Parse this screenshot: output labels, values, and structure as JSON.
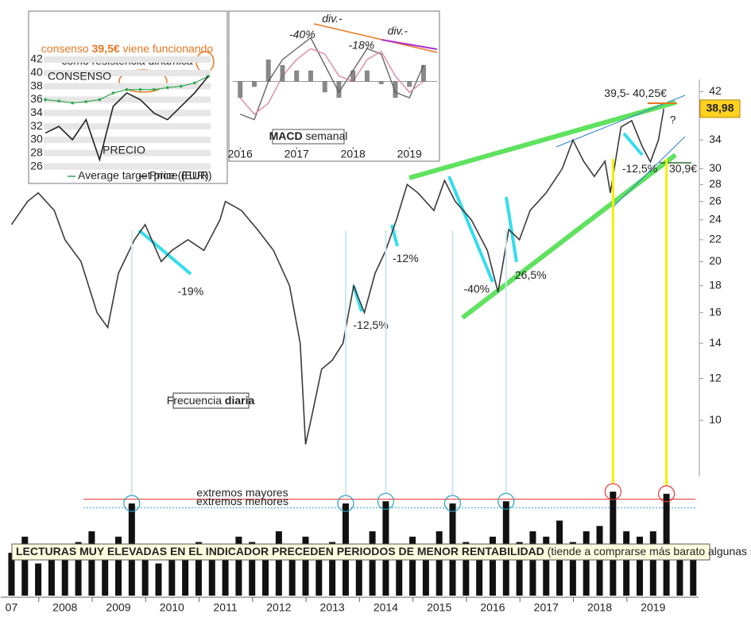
{
  "chart_data": [
    {
      "type": "line",
      "log_scale": true,
      "color": "#3a3a3a",
      "x": [
        2007.0,
        2007.3,
        2007.5,
        2007.8,
        2008.0,
        2008.3,
        2008.6,
        2008.8,
        2009.0,
        2009.3,
        2009.5,
        2009.8,
        2010.0,
        2010.3,
        2010.6,
        2010.9,
        2011.0,
        2011.3,
        2011.6,
        2011.9,
        2012.2,
        2012.4,
        2012.5,
        2012.6,
        2012.8,
        2013.0,
        2013.2,
        2013.4,
        2013.6,
        2013.8,
        2014.0,
        2014.2,
        2014.4,
        2014.6,
        2014.9,
        2015.1,
        2015.3,
        2015.6,
        2015.9,
        2016.1,
        2016.3,
        2016.5,
        2016.7,
        2017.0,
        2017.3,
        2017.5,
        2017.7,
        2017.9,
        2018.1,
        2018.2,
        2018.4,
        2018.6,
        2018.8,
        2018.95,
        2019.1,
        2019.2
      ],
      "values": [
        23.5,
        26,
        27,
        25,
        22,
        20,
        16,
        15,
        19,
        22,
        23.5,
        20,
        21,
        22,
        21,
        24,
        26,
        25,
        23,
        21,
        18,
        14,
        9,
        10,
        12.5,
        13,
        14,
        18,
        16,
        19,
        21,
        24,
        28,
        27,
        25,
        28.5,
        26,
        24,
        21,
        17.5,
        23,
        22,
        25,
        27,
        30,
        34,
        31,
        29,
        31,
        27,
        36,
        37,
        33,
        30.9,
        34,
        38.98
      ],
      "xlim": [
        2006.8,
        2019.85
      ],
      "ylim": [
        8.1,
        44.3
      ],
      "yticks": [
        10,
        12,
        14,
        16,
        18,
        20,
        22,
        24,
        26,
        28,
        30,
        34,
        38,
        42
      ],
      "last_value": 38.98,
      "last_value_label": "38,98",
      "annotations": [
        {
          "text": "-19%",
          "x": 2010.35,
          "y": 17.5,
          "color": "#1a7f8f"
        },
        {
          "text": "-12,5%",
          "x": 2013.72,
          "y": 15.1,
          "color": "#1a7f8f"
        },
        {
          "text": "-12%",
          "x": 2014.37,
          "y": 20.2,
          "color": "#1a7f8f"
        },
        {
          "text": "-40%",
          "x": 2015.7,
          "y": 17.7,
          "color": "#1a7f8f"
        },
        {
          "text": "26,5%",
          "x": 2016.71,
          "y": 18.8,
          "color": "#1a7f8f"
        },
        {
          "text": "-12,5%",
          "x": 2018.75,
          "y": 29.9,
          "color": "#1a7f8f"
        },
        {
          "text": "39,5- 40,25€",
          "x": 2018.67,
          "y": 41.6,
          "color": "#e87722"
        },
        {
          "text": "30,9€",
          "x": 2019.56,
          "y": 29.9,
          "color": "#2e6b2e"
        },
        {
          "text": "?",
          "x": 2019.37,
          "y": 37.0,
          "color": "#1a7f8f"
        }
      ],
      "frequency_label": [
        "Frecuencia",
        "diaria"
      ]
    },
    {
      "type": "bar",
      "color": "#111111",
      "x": [
        2007.0,
        2007.25,
        2007.5,
        2007.75,
        2008.0,
        2008.25,
        2008.5,
        2008.75,
        2009.0,
        2009.25,
        2009.5,
        2009.75,
        2010.0,
        2010.25,
        2010.5,
        2010.75,
        2011.0,
        2011.25,
        2011.5,
        2011.75,
        2012.0,
        2012.25,
        2012.5,
        2012.75,
        2013.0,
        2013.25,
        2013.5,
        2013.75,
        2014.0,
        2014.25,
        2014.5,
        2014.75,
        2015.0,
        2015.25,
        2015.5,
        2015.75,
        2016.0,
        2016.25,
        2016.5,
        2016.75,
        2017.0,
        2017.25,
        2017.5,
        2017.75,
        2018.0,
        2018.25,
        2018.5,
        2018.75,
        2019.0,
        2019.25,
        2019.5,
        2019.75
      ],
      "values": [
        40,
        55,
        30,
        45,
        35,
        50,
        60,
        45,
        55,
        86,
        40,
        30,
        45,
        35,
        50,
        40,
        45,
        55,
        50,
        35,
        60,
        45,
        55,
        40,
        50,
        86,
        45,
        60,
        88,
        45,
        55,
        40,
        60,
        86,
        50,
        45,
        55,
        88,
        50,
        60,
        55,
        70,
        50,
        60,
        65,
        97,
        60,
        55,
        60,
        95,
        45,
        40
      ],
      "xlim": [
        2006.8,
        2019.85
      ],
      "ylim": [
        0,
        100
      ],
      "xticks": [
        {
          "value": 2007,
          "label": "07"
        },
        2008,
        2009,
        2010,
        2011,
        2012,
        2013,
        2014,
        2015,
        2016,
        2017,
        2018,
        2019
      ],
      "thresholds": [
        {
          "label": "extremos mayores",
          "value": 90,
          "color": "#e53935"
        },
        {
          "label": "extremos menores",
          "value": 82,
          "color": "#2a9fc4"
        }
      ],
      "banner": [
        "LECTURAS MUY ELEVADAS EN EL INDICADOR PRECEDEN PERIODOS DE MENOR RENTABILIDAD",
        "(tiende a comprarse más barato algunas semanas/meses después)"
      ]
    },
    {
      "type": "line",
      "categories": [
        null,
        null,
        null,
        null,
        null,
        null,
        null,
        null,
        null,
        null,
        null,
        null,
        null
      ],
      "ylim": [
        25,
        43
      ],
      "yticks": [
        26,
        28,
        30,
        32,
        34,
        36,
        38,
        40,
        42
      ],
      "series": [
        {
          "name": "Average target price (EUR)",
          "label": "CONSENSO",
          "color": "#2fa84f",
          "values": [
            36,
            35.8,
            35.5,
            35.7,
            36,
            37,
            37.5,
            37.5,
            37.5,
            37.8,
            38,
            38.5,
            39.5
          ]
        },
        {
          "name": "Price (EUR)",
          "label": "PRECIO",
          "color": "#222222",
          "values": [
            31,
            32,
            30,
            33,
            27,
            35,
            37,
            36,
            34,
            33,
            35,
            37,
            39.5
          ]
        }
      ],
      "note": [
        "consenso",
        "39,5€",
        "viene funcionando",
        "como resistencia dinámica"
      ]
    },
    {
      "type": "line",
      "x": [
        2016.0,
        2016.25,
        2016.5,
        2016.75,
        2017.0,
        2017.25,
        2017.5,
        2017.75,
        2018.0,
        2018.25,
        2018.5,
        2018.75,
        2019.0,
        2019.25
      ],
      "xlim": [
        2015.87,
        2019.49
      ],
      "xticks": [
        2016,
        2017,
        2018,
        2019
      ],
      "ylim": [
        -1.2,
        1.2
      ],
      "series": [
        {
          "color": "#666666",
          "values": [
            -0.6,
            -0.7,
            0.0,
            0.4,
            0.6,
            0.8,
            0.3,
            -0.2,
            0.2,
            0.6,
            0.5,
            -0.2,
            -0.3,
            0.3
          ]
        },
        {
          "color": "#e08aa0",
          "values": [
            -0.3,
            -0.6,
            -0.4,
            0.1,
            0.4,
            0.6,
            0.5,
            0.1,
            0.0,
            0.4,
            0.55,
            0.1,
            -0.2,
            0.0
          ]
        },
        {
          "color": "#555555",
          "style": "bar",
          "values": [
            -0.3,
            -0.1,
            0.4,
            0.3,
            0.2,
            0.2,
            -0.2,
            -0.3,
            0.2,
            0.2,
            -0.05,
            -0.3,
            -0.1,
            0.3
          ]
        }
      ],
      "annotations": [
        {
          "text": "div.-",
          "x": 2017.63,
          "y": 1.14,
          "color": "#e87722"
        },
        {
          "text": "div.-",
          "x": 2018.79,
          "y": 0.91,
          "color": "#b030d0"
        },
        {
          "text": "-40%",
          "x": 2017.1,
          "y": 0.85,
          "color": "#e87722"
        },
        {
          "text": "-18%",
          "x": 2018.15,
          "y": 0.65,
          "color": "#e87722"
        }
      ],
      "label": [
        "MACD",
        "semanal"
      ]
    }
  ]
}
